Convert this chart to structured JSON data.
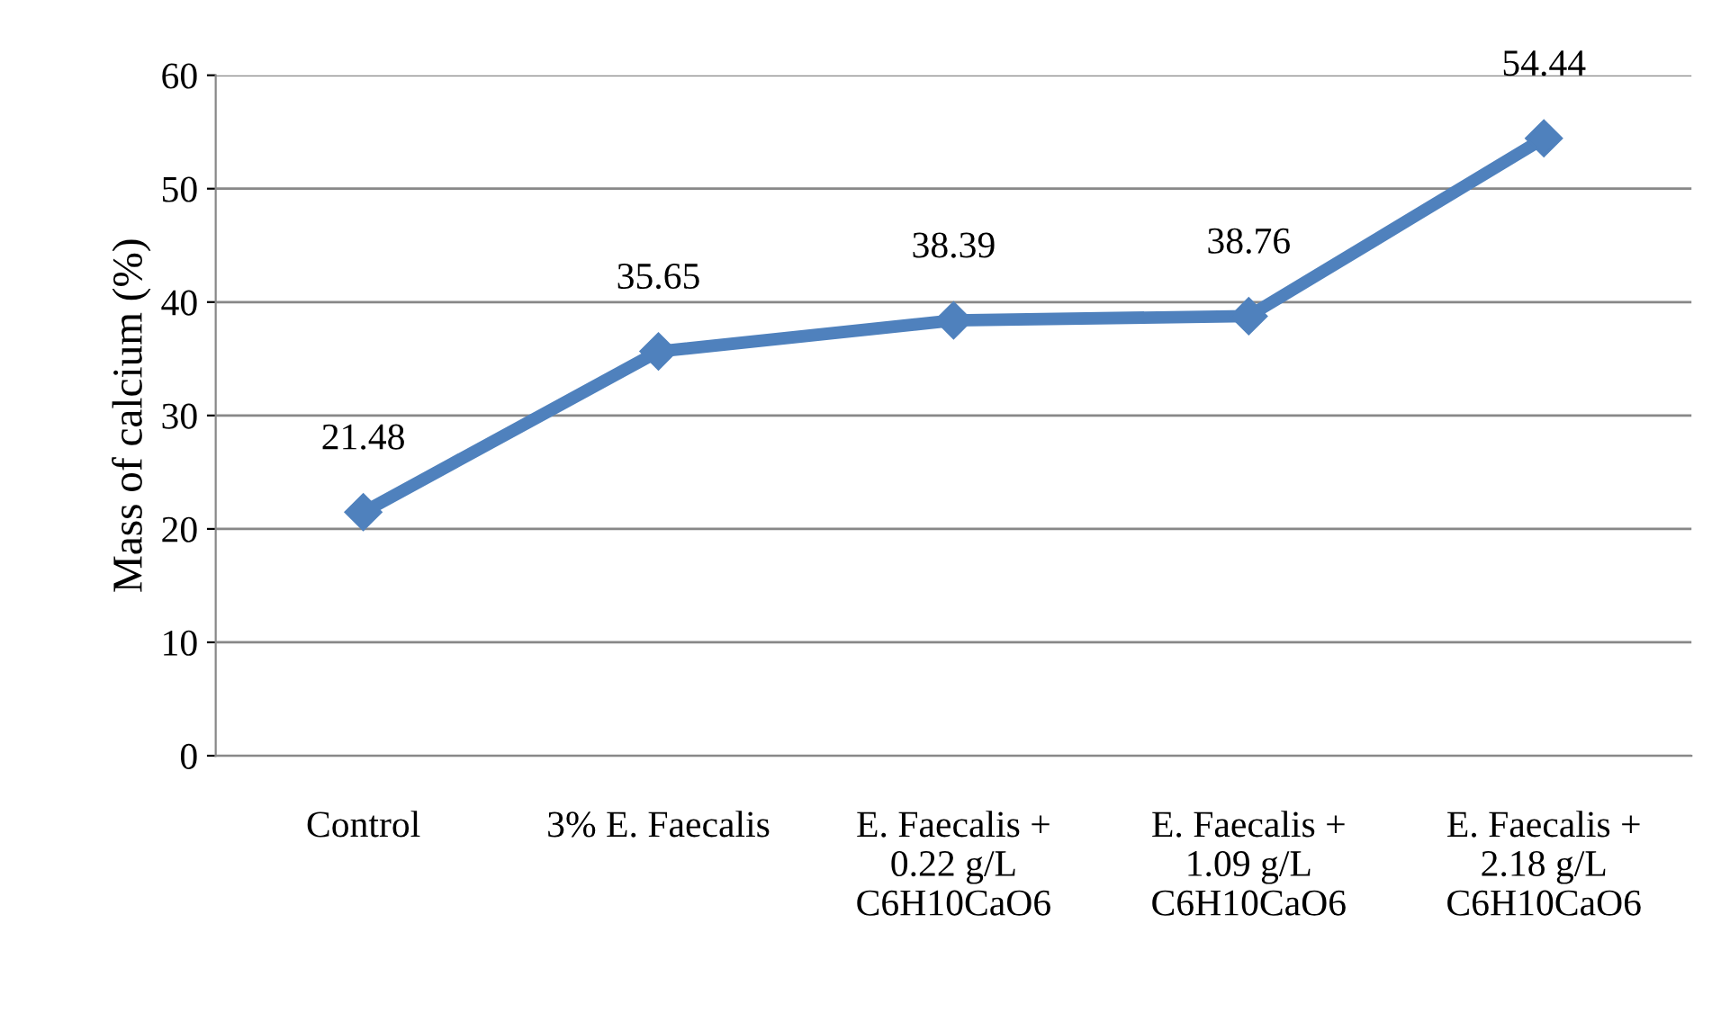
{
  "chart_data": {
    "type": "line",
    "categories": [
      "Control",
      "3% E. Faecalis",
      "E. Faecalis +\n0.22 g/L\nC6H10CaO6",
      "E. Faecalis +\n1.09 g/L\nC6H10CaO6",
      "E. Faecalis +\n2.18 g/L\nC6H10CaO6"
    ],
    "series": [
      {
        "color": "#4f81bd",
        "values": [
          21.48,
          35.65,
          38.39,
          38.76,
          54.44
        ]
      }
    ],
    "ylabel": "Mass of calcium (%)",
    "ylim": [
      0,
      60
    ],
    "yticks": [
      0,
      10,
      20,
      30,
      40,
      50,
      60
    ],
    "grid": "y",
    "marker": "diamond",
    "line_style": "solid",
    "data_labels": true,
    "legend": false
  }
}
